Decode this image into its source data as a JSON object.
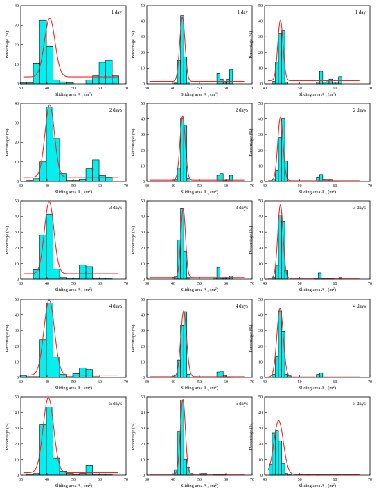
{
  "figure": {
    "xlabel_text": "Sliding area A",
    "xlabel_sub": "c",
    "xlabel_unit_pre": " (m",
    "xlabel_unit_sup": "2",
    "xlabel_unit_post": ")",
    "ylabel": "Percentage (%)",
    "colors": {
      "bar": "#00f0f0",
      "fit": "#ff2020"
    }
  },
  "chart_data": [
    {
      "type": "bar",
      "title": "1 day",
      "xlim": [
        30,
        70
      ],
      "ylim": [
        0,
        40
      ],
      "xticks": [
        30,
        40,
        50,
        60,
        70
      ],
      "yticks": [
        0,
        10,
        20,
        30,
        40
      ],
      "bin_width": 2.5,
      "x": [
        31,
        33.5,
        36,
        38.5,
        41,
        43.5,
        46,
        48.5,
        51,
        53.5,
        56,
        58.5,
        61,
        63.5,
        66
      ],
      "values": [
        0.5,
        0.5,
        10.5,
        32.5,
        19,
        2,
        1,
        0.5,
        0,
        0,
        2,
        4,
        11,
        12,
        4
      ],
      "fit": {
        "mu": 41,
        "sigma": 2.0,
        "amp": 30,
        "baseline": 3.5
      }
    },
    {
      "type": "bar",
      "title": "1 day",
      "xlim": [
        30,
        70
      ],
      "ylim": [
        0,
        50
      ],
      "xticks": [
        30,
        40,
        50,
        60,
        70
      ],
      "yticks": [
        0,
        10,
        20,
        30,
        40,
        50
      ],
      "bin_width": 1.2,
      "x": [
        41,
        42.2,
        43.4,
        44.6,
        45.8,
        57.2,
        58.4,
        59.6,
        60.8,
        62
      ],
      "values": [
        0.5,
        15,
        43.5,
        17,
        1,
        6.5,
        3,
        1,
        3,
        9
      ],
      "fit": {
        "mu": 43.5,
        "sigma": 1.0,
        "amp": 41,
        "baseline": 1.5
      }
    },
    {
      "type": "bar",
      "title": "1 day",
      "xlim": [
        40,
        70
      ],
      "ylim": [
        0,
        50
      ],
      "xticks": [
        40,
        50,
        60,
        70
      ],
      "yticks": [
        0,
        10,
        20,
        30,
        40,
        50
      ],
      "bin_width": 0.9,
      "x": [
        42.6,
        43.5,
        44.4,
        45.3,
        46.2,
        55.2,
        56.1,
        57,
        57.9,
        58.8,
        59.7,
        60.6,
        61.5
      ],
      "values": [
        1.5,
        14,
        32,
        34,
        1,
        1,
        8,
        1,
        2,
        3,
        1,
        1,
        4.5
      ],
      "fit": {
        "mu": 44.5,
        "sigma": 0.75,
        "amp": 38.5,
        "baseline": 2
      }
    },
    {
      "type": "bar",
      "title": "2 days",
      "xlim": [
        30,
        70
      ],
      "ylim": [
        0,
        40
      ],
      "xticks": [
        30,
        40,
        50,
        60,
        70
      ],
      "yticks": [
        0,
        10,
        20,
        30,
        40
      ],
      "bin_width": 2.5,
      "x": [
        33.5,
        36,
        38.5,
        41,
        43.5,
        46,
        48.5,
        51,
        53.5,
        56,
        58.5,
        61,
        63.5
      ],
      "values": [
        0.5,
        1.5,
        10,
        38,
        22,
        4,
        0.5,
        0.5,
        1,
        6.5,
        11,
        3,
        2
      ],
      "fit": {
        "mu": 41,
        "sigma": 1.8,
        "amp": 37,
        "baseline": 2.2
      }
    },
    {
      "type": "bar",
      "title": "2 days",
      "xlim": [
        30,
        70
      ],
      "ylim": [
        0,
        50
      ],
      "xticks": [
        30,
        40,
        50,
        60,
        70
      ],
      "yticks": [
        0,
        10,
        20,
        30,
        40,
        50
      ],
      "bin_width": 1.2,
      "x": [
        41,
        42.2,
        43.4,
        44.6,
        45.8,
        57.2,
        58.4,
        59.6,
        60.8,
        62
      ],
      "values": [
        1,
        8.5,
        40,
        35.5,
        2,
        4,
        5,
        0.5,
        1,
        4
      ],
      "fit": {
        "mu": 43.6,
        "sigma": 1.0,
        "amp": 41,
        "baseline": 0.8
      }
    },
    {
      "type": "bar",
      "title": "2 days",
      "xlim": [
        40,
        70
      ],
      "ylim": [
        0,
        50
      ],
      "xticks": [
        40,
        50,
        60,
        70
      ],
      "yticks": [
        0,
        10,
        20,
        30,
        40,
        50
      ],
      "bin_width": 0.9,
      "x": [
        42.6,
        43.5,
        44.4,
        45.3,
        46.2,
        55.2,
        56.1,
        57,
        57.9,
        58.8,
        59.7,
        60.6
      ],
      "values": [
        1.5,
        7,
        28,
        40,
        13,
        2.5,
        4.5,
        1,
        1,
        1,
        0.5,
        0.5
      ],
      "fit": {
        "mu": 44.5,
        "sigma": 0.75,
        "amp": 40.5,
        "baseline": 0.5
      }
    },
    {
      "type": "bar",
      "title": "3 days",
      "xlim": [
        30,
        70
      ],
      "ylim": [
        0,
        50
      ],
      "xticks": [
        30,
        40,
        50,
        60,
        70
      ],
      "yticks": [
        0,
        10,
        20,
        30,
        40,
        50
      ],
      "bin_width": 2.5,
      "x": [
        36,
        38.5,
        41,
        43.5,
        46,
        48.5,
        51,
        53.5,
        56,
        58.5,
        61,
        63.5
      ],
      "values": [
        6,
        28,
        41.5,
        6.5,
        1,
        0.5,
        0.5,
        9,
        8,
        0.5,
        0.5,
        0.5
      ],
      "fit": {
        "mu": 40.8,
        "sigma": 1.8,
        "amp": 46,
        "baseline": 3.5
      }
    },
    {
      "type": "bar",
      "title": "3 days",
      "xlim": [
        30,
        70
      ],
      "ylim": [
        0,
        50
      ],
      "xticks": [
        30,
        40,
        50,
        60,
        70
      ],
      "yticks": [
        0,
        10,
        20,
        30,
        40,
        50
      ],
      "bin_width": 1.2,
      "x": [
        41,
        42.2,
        43.4,
        44.6,
        45.8,
        55.8,
        57.2,
        58.4,
        59.6,
        60.8,
        62
      ],
      "values": [
        1.5,
        25,
        45,
        17.5,
        1,
        1,
        7.5,
        0.5,
        0.5,
        1,
        2
      ],
      "fit": {
        "mu": 43.8,
        "sigma": 0.9,
        "amp": 44,
        "baseline": 1
      }
    },
    {
      "type": "bar",
      "title": "3 days",
      "xlim": [
        40,
        70
      ],
      "ylim": [
        0,
        50
      ],
      "xticks": [
        40,
        50,
        60,
        70
      ],
      "yticks": [
        0,
        10,
        20,
        30,
        40,
        50
      ],
      "bin_width": 0.9,
      "x": [
        42.6,
        43.5,
        44.4,
        45.3,
        46.2,
        54.8,
        55.7,
        56.6,
        57.5,
        58.4,
        59.3,
        61.6
      ],
      "values": [
        1,
        8.5,
        41,
        37,
        5.5,
        0.5,
        4,
        0.5,
        0.5,
        0.5,
        0.5,
        1
      ],
      "fit": {
        "mu": 44.5,
        "sigma": 0.75,
        "amp": 47,
        "baseline": 0.5
      }
    },
    {
      "type": "bar",
      "title": "4 days",
      "xlim": [
        30,
        70
      ],
      "ylim": [
        0,
        50
      ],
      "xticks": [
        30,
        40,
        50,
        60,
        70
      ],
      "yticks": [
        0,
        10,
        20,
        30,
        40,
        50
      ],
      "bin_width": 2.5,
      "x": [
        31,
        33.5,
        36,
        38.5,
        41,
        43.5,
        46,
        48.5,
        51,
        53.5,
        56,
        58.5
      ],
      "values": [
        1,
        0.5,
        0.5,
        24,
        47.5,
        13,
        2,
        0.5,
        2.5,
        6,
        5,
        0.5
      ],
      "fit": {
        "mu": 40.8,
        "sigma": 2.0,
        "amp": 48,
        "baseline": 1.5
      }
    },
    {
      "type": "bar",
      "title": "4 days",
      "xlim": [
        30,
        70
      ],
      "ylim": [
        0,
        50
      ],
      "xticks": [
        30,
        40,
        50,
        60,
        70
      ],
      "yticks": [
        0,
        10,
        20,
        30,
        40,
        50
      ],
      "bin_width": 1.2,
      "x": [
        41,
        42.2,
        43.4,
        44.6,
        45.8,
        57.2,
        58.4,
        59.6,
        60.8,
        62
      ],
      "values": [
        1.5,
        11,
        33.5,
        42,
        2,
        3.5,
        4,
        1,
        0.5,
        0.5
      ],
      "fit": {
        "mu": 44,
        "sigma": 1.1,
        "amp": 42,
        "baseline": 0.5
      }
    },
    {
      "type": "bar",
      "title": "4 days",
      "xlim": [
        40,
        70
      ],
      "ylim": [
        0,
        50
      ],
      "xticks": [
        40,
        50,
        60,
        70
      ],
      "yticks": [
        0,
        10,
        20,
        30,
        40,
        50
      ],
      "bin_width": 0.9,
      "x": [
        42.6,
        43.5,
        44.4,
        45.3,
        46.2,
        47.1,
        55.2,
        56.1
      ],
      "values": [
        2,
        13.5,
        42.5,
        29.5,
        2,
        1,
        2,
        3
      ],
      "fit": {
        "mu": 44.4,
        "sigma": 0.9,
        "amp": 44,
        "baseline": 0.3
      }
    },
    {
      "type": "bar",
      "title": "5 days",
      "xlim": [
        30,
        70
      ],
      "ylim": [
        0,
        50
      ],
      "xticks": [
        30,
        40,
        50,
        60,
        70
      ],
      "yticks": [
        0,
        10,
        20,
        30,
        40,
        50
      ],
      "bin_width": 2.5,
      "x": [
        33.5,
        36,
        38.5,
        41,
        43.5,
        46,
        48.5,
        51,
        53.5,
        56,
        58.5,
        61,
        63.5
      ],
      "values": [
        0.5,
        1,
        32.5,
        43.5,
        11,
        2.5,
        1,
        0.5,
        1,
        6,
        0.5,
        0.5,
        0.5
      ],
      "fit": {
        "mu": 40.5,
        "sigma": 2.0,
        "amp": 48,
        "baseline": 1.5
      }
    },
    {
      "type": "bar",
      "title": "5 days",
      "xlim": [
        30,
        70
      ],
      "ylim": [
        0,
        50
      ],
      "xticks": [
        30,
        40,
        50,
        60,
        70
      ],
      "yticks": [
        0,
        10,
        20,
        30,
        40,
        50
      ],
      "bin_width": 1.2,
      "x": [
        41,
        42.2,
        43.4,
        44.6,
        45.8,
        47,
        51,
        52.2,
        55.8,
        57,
        58.2,
        59.4
      ],
      "values": [
        3.5,
        28,
        48,
        10,
        5,
        1,
        1,
        1,
        0.5,
        0.5,
        0.5,
        0.5
      ],
      "fit": {
        "mu": 43.7,
        "sigma": 0.95,
        "amp": 48,
        "baseline": 0.5
      }
    },
    {
      "type": "bar",
      "title": "5 days",
      "xlim": [
        40,
        70
      ],
      "ylim": [
        0,
        50
      ],
      "xticks": [
        40,
        50,
        60,
        70
      ],
      "yticks": [
        0,
        10,
        20,
        30,
        40,
        50
      ],
      "bin_width": 0.9,
      "x": [
        41.7,
        42.6,
        43.5,
        44.4,
        45.3,
        46.2,
        47.1,
        52.5,
        55.2,
        60.6
      ],
      "values": [
        7,
        27,
        28.5,
        22,
        7.5,
        1,
        0.5,
        0.5,
        0.5,
        0.5
      ],
      "fit": {
        "mu": 44.0,
        "sigma": 1.35,
        "amp": 34.5,
        "baseline": 0.3
      }
    }
  ]
}
